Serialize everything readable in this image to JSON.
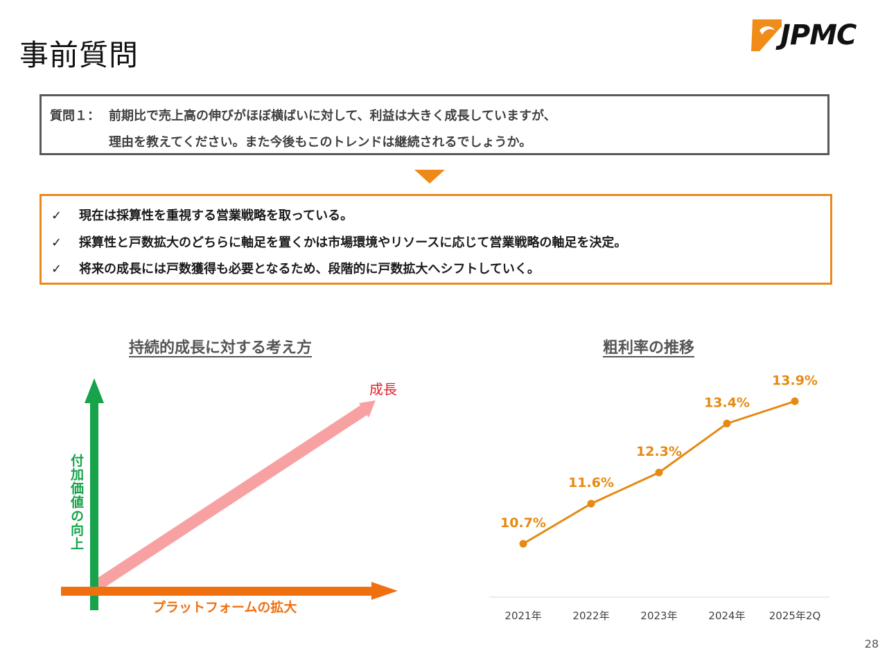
{
  "page": {
    "title": "事前質問",
    "logo_text": "JPMC",
    "page_number": "28"
  },
  "question": {
    "prefix": "質問１：",
    "line1": "前期比で売上高の伸びがほぼ横ばいに対して、利益は大きく成長していますが、",
    "line2": "理由を教えてください。また今後もこのトレンドは継続されるでしょうか。"
  },
  "answer": {
    "check_mark": "✓",
    "items": [
      "現在は採算性を重視する営業戦略を取っている。",
      "採算性と戸数拡大のどちらに軸足を置くかは市場環境やリソースに応じて営業戦略の軸足を決定。",
      "将来の成長には戸数獲得も必要となるため、段階的に戸数拡大へシフトしていく。"
    ]
  },
  "diagram": {
    "title": "持続的成長に対する考え方",
    "y_axis_label": "付加価値の向上",
    "x_axis_label": "プラットフォームの拡大",
    "growth_label": "成長",
    "colors": {
      "y_axis": "#16a34a",
      "x_axis": "#f07010",
      "growth": "#f7a1a3",
      "growth_text": "#e0222a"
    }
  },
  "chart_data": {
    "type": "line",
    "title": "粗利率の推移",
    "categories": [
      "2021年",
      "2022年",
      "2023年",
      "2024年",
      "2025年2Q"
    ],
    "series": [
      {
        "values": [
          10.7,
          11.6,
          12.3,
          13.4,
          13.9
        ],
        "labels": [
          "10.7%",
          "11.6%",
          "12.3%",
          "13.4%",
          "13.9%"
        ]
      }
    ],
    "ylim": [
      10.0,
      14.2
    ],
    "grid": false,
    "legend": "none",
    "color": "#e58a12"
  }
}
